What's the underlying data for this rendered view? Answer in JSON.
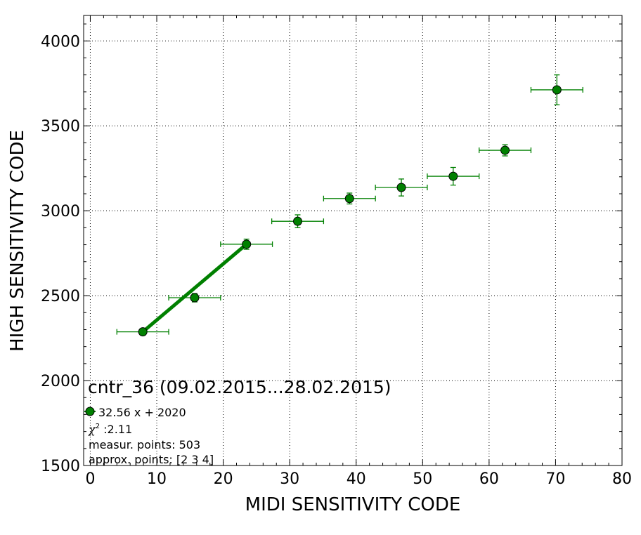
{
  "chart_data": {
    "type": "scatter",
    "title": "",
    "xlabel": "MIDI SENSITIVITY CODE",
    "ylabel": "HIGH SENSITIVITY CODE",
    "xlim": [
      -1,
      80
    ],
    "ylim": [
      1500,
      4150
    ],
    "x_ticks": [
      0,
      10,
      20,
      30,
      40,
      50,
      60,
      70,
      80
    ],
    "y_ticks": [
      1500,
      2000,
      2500,
      3000,
      3500,
      4000
    ],
    "x_tick_labels": [
      "0",
      "10",
      "20",
      "30",
      "40",
      "50",
      "60",
      "70",
      "80"
    ],
    "y_tick_labels": [
      "1500",
      "2000",
      "2500",
      "3000",
      "3500",
      "4000"
    ],
    "grid": true,
    "points": [
      {
        "x": 7.9,
        "y": 2287,
        "xerr": 3.9,
        "yerr": 18
      },
      {
        "x": 15.7,
        "y": 2488,
        "xerr": 3.9,
        "yerr": 25
      },
      {
        "x": 23.5,
        "y": 2803,
        "xerr": 3.9,
        "yerr": 30
      },
      {
        "x": 31.2,
        "y": 2938,
        "xerr": 3.9,
        "yerr": 38
      },
      {
        "x": 39.0,
        "y": 3072,
        "xerr": 3.9,
        "yerr": 32
      },
      {
        "x": 46.8,
        "y": 3137,
        "xerr": 3.9,
        "yerr": 50
      },
      {
        "x": 54.6,
        "y": 3203,
        "xerr": 3.9,
        "yerr": 52
      },
      {
        "x": 62.4,
        "y": 3356,
        "xerr": 3.9,
        "yerr": 33
      },
      {
        "x": 70.2,
        "y": 3712,
        "xerr": 3.9,
        "yerr": 88
      }
    ],
    "fit_line": {
      "x": [
        7.9,
        23.5
      ],
      "y": [
        2287,
        2803
      ]
    },
    "colors": {
      "marker": "#008000",
      "marker_edge": "#000000",
      "errorbar": "#008000",
      "fit_line": "#008000",
      "grid": "#000000"
    },
    "annotation": {
      "title": "cntr_36 (09.02.2015...28.02.2015)",
      "legend_label": "32.56 x + 2020",
      "chi2_symbol": "χ",
      "chi2_exponent": "2",
      "chi2_value": " :2.11",
      "measur_points": "measur. points: 503",
      "approx_points": "approx. points: [2 3 4]"
    }
  }
}
